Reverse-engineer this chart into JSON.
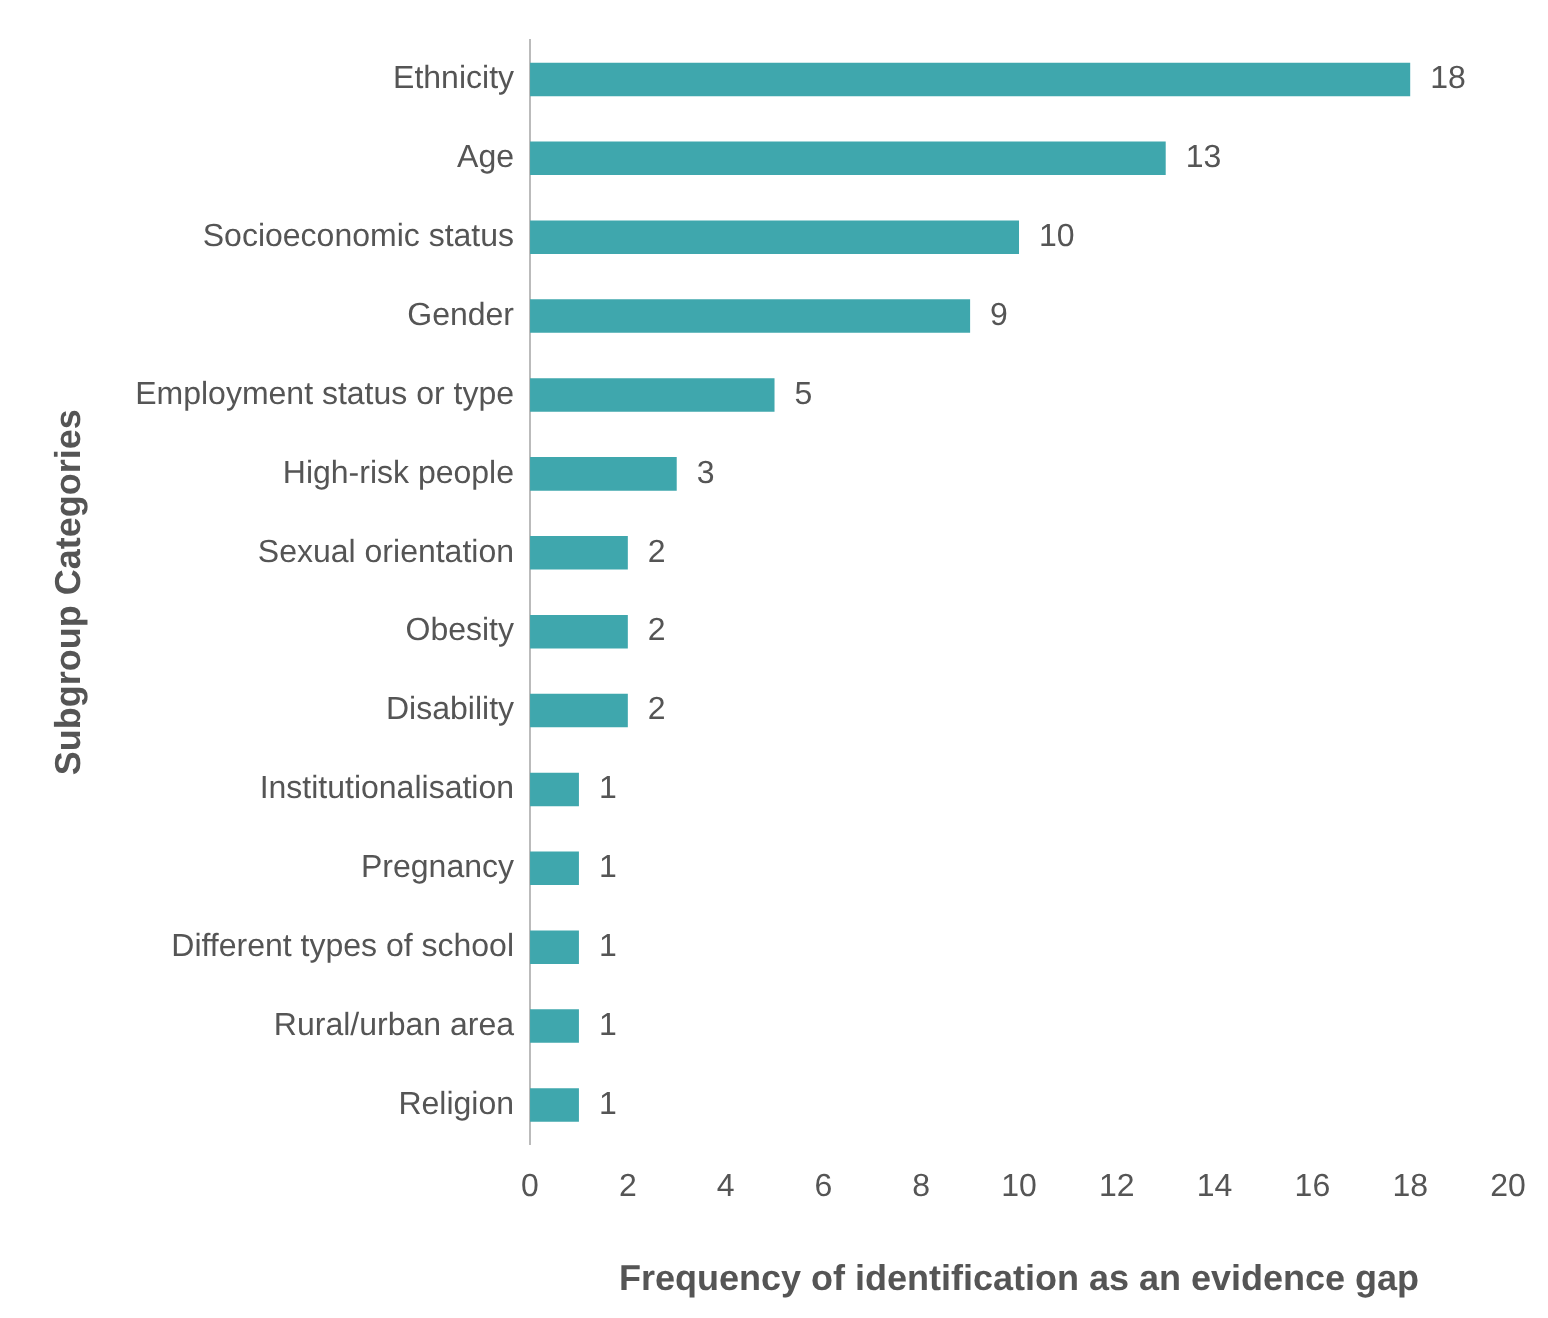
{
  "chart_data": {
    "type": "bar",
    "orientation": "horizontal",
    "xlabel": "Frequency of identification as an evidence gap",
    "ylabel": "Subgroup Categories",
    "categories": [
      "Ethnicity",
      "Age",
      "Socioeconomic status",
      "Gender",
      "Employment status or type",
      "High-risk people",
      "Sexual orientation",
      "Obesity",
      "Disability",
      "Institutionalisation",
      "Pregnancy",
      "Different types of school",
      "Rural/urban area",
      "Religion"
    ],
    "values": [
      18,
      13,
      10,
      9,
      5,
      3,
      2,
      2,
      2,
      1,
      1,
      1,
      1,
      1
    ],
    "color": "#3fa7ad",
    "xlim": [
      0,
      20
    ],
    "xticks": [
      0,
      2,
      4,
      6,
      8,
      10,
      12,
      14,
      16,
      18,
      20
    ],
    "grid": false,
    "legend": false,
    "data_labels": true
  }
}
